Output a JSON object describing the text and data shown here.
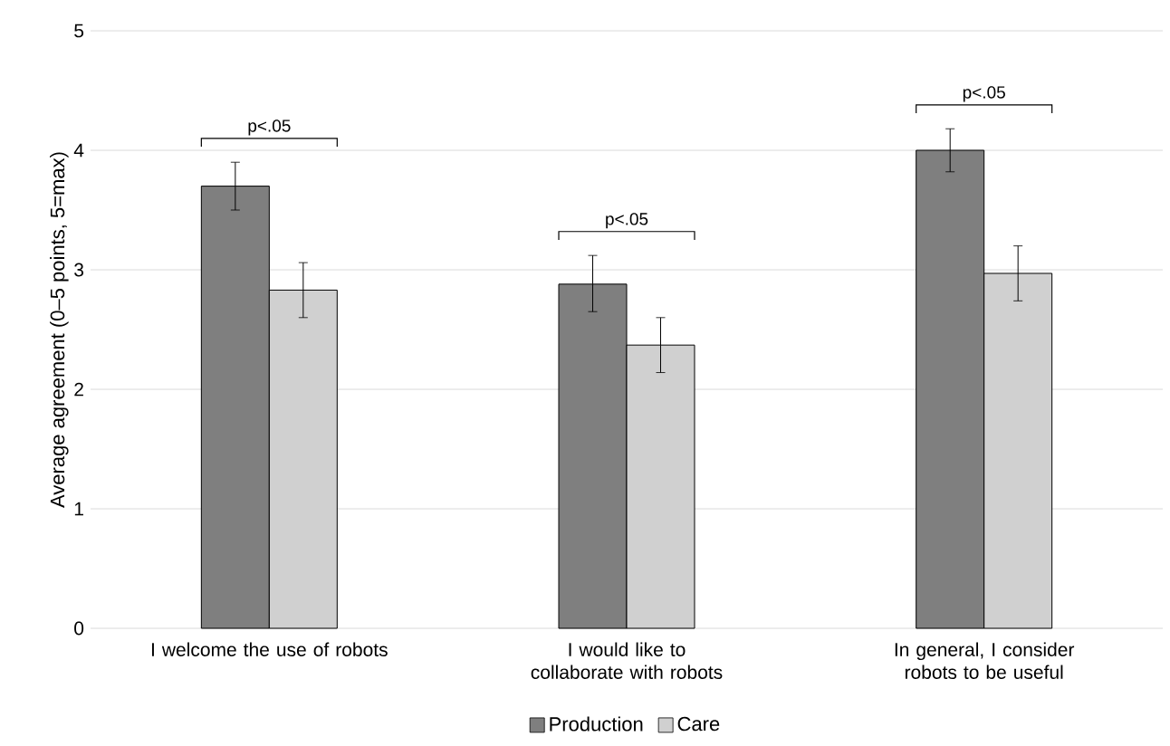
{
  "chart_data": {
    "type": "bar",
    "ylabel": "Average agreement (0–5 points, 5=max)",
    "categories": [
      "I welcome the use of robots",
      "I would like to collaborate with robots",
      "In general, I consider robots to be useful"
    ],
    "series": [
      {
        "name": "Production",
        "color": "#7f7f7f",
        "values": [
          3.7,
          2.88,
          4.0
        ],
        "errors": [
          [
            3.5,
            3.9
          ],
          [
            2.65,
            3.12
          ],
          [
            3.82,
            4.18
          ]
        ]
      },
      {
        "name": "Care",
        "color": "#d0d0d0",
        "values": [
          2.83,
          2.37,
          2.97
        ],
        "errors": [
          [
            2.6,
            3.06
          ],
          [
            2.14,
            2.6
          ],
          [
            2.74,
            3.2
          ]
        ]
      }
    ],
    "ylim": [
      0,
      5
    ],
    "yticks": [
      0,
      1,
      2,
      3,
      4,
      5
    ],
    "grid": "y",
    "legend": "bottom",
    "annotations": [
      "p<.05",
      "p<.05",
      "p<.05"
    ]
  }
}
